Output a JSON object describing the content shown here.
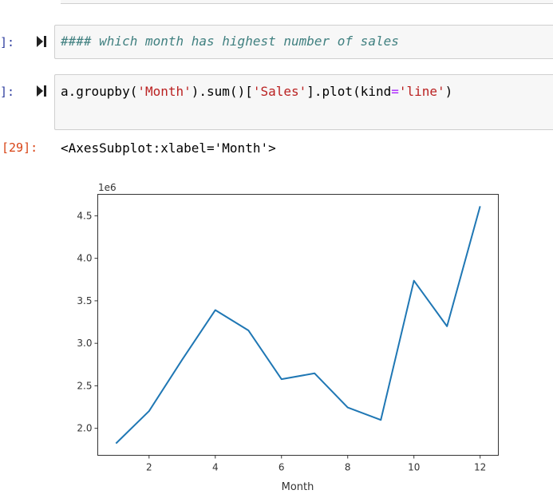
{
  "cells": [
    {
      "prompt": "]:",
      "code": [
        "#### which month has highest number of sales"
      ]
    },
    {
      "prompt": "]:",
      "code": [
        "a.groupby(",
        "'Month'",
        ").sum()[",
        "'Sales'",
        "].plot(kind",
        "=",
        "'line'",
        ")"
      ]
    }
  ],
  "output": {
    "prompt": "[29]:",
    "text": "<AxesSubplot:xlabel='Month'>"
  },
  "chart_data": {
    "type": "line",
    "x": [
      1,
      2,
      3,
      4,
      5,
      6,
      7,
      8,
      9,
      10,
      11,
      12
    ],
    "series": [
      {
        "values": [
          1822000,
          2203000,
          2807000,
          3391000,
          3152000,
          2578000,
          2647000,
          2245000,
          2098000,
          3737000,
          3200000,
          4613000
        ],
        "color": "#1f77b4"
      }
    ],
    "xlabel": "Month",
    "ylabel": "",
    "offset_text": "1e6",
    "xticks": [
      2,
      4,
      6,
      8,
      10,
      12
    ],
    "xtick_labels": [
      "2",
      "4",
      "6",
      "8",
      "10",
      "12"
    ],
    "yticks": [
      2000000,
      2500000,
      3000000,
      3500000,
      4000000,
      4500000
    ],
    "ytick_labels": [
      "2.0",
      "2.5",
      "3.0",
      "3.5",
      "4.0",
      "4.5"
    ],
    "xlim": [
      0.45,
      12.55
    ],
    "ylim": [
      1682450,
      4752550
    ],
    "grid": false,
    "legend": "none"
  }
}
